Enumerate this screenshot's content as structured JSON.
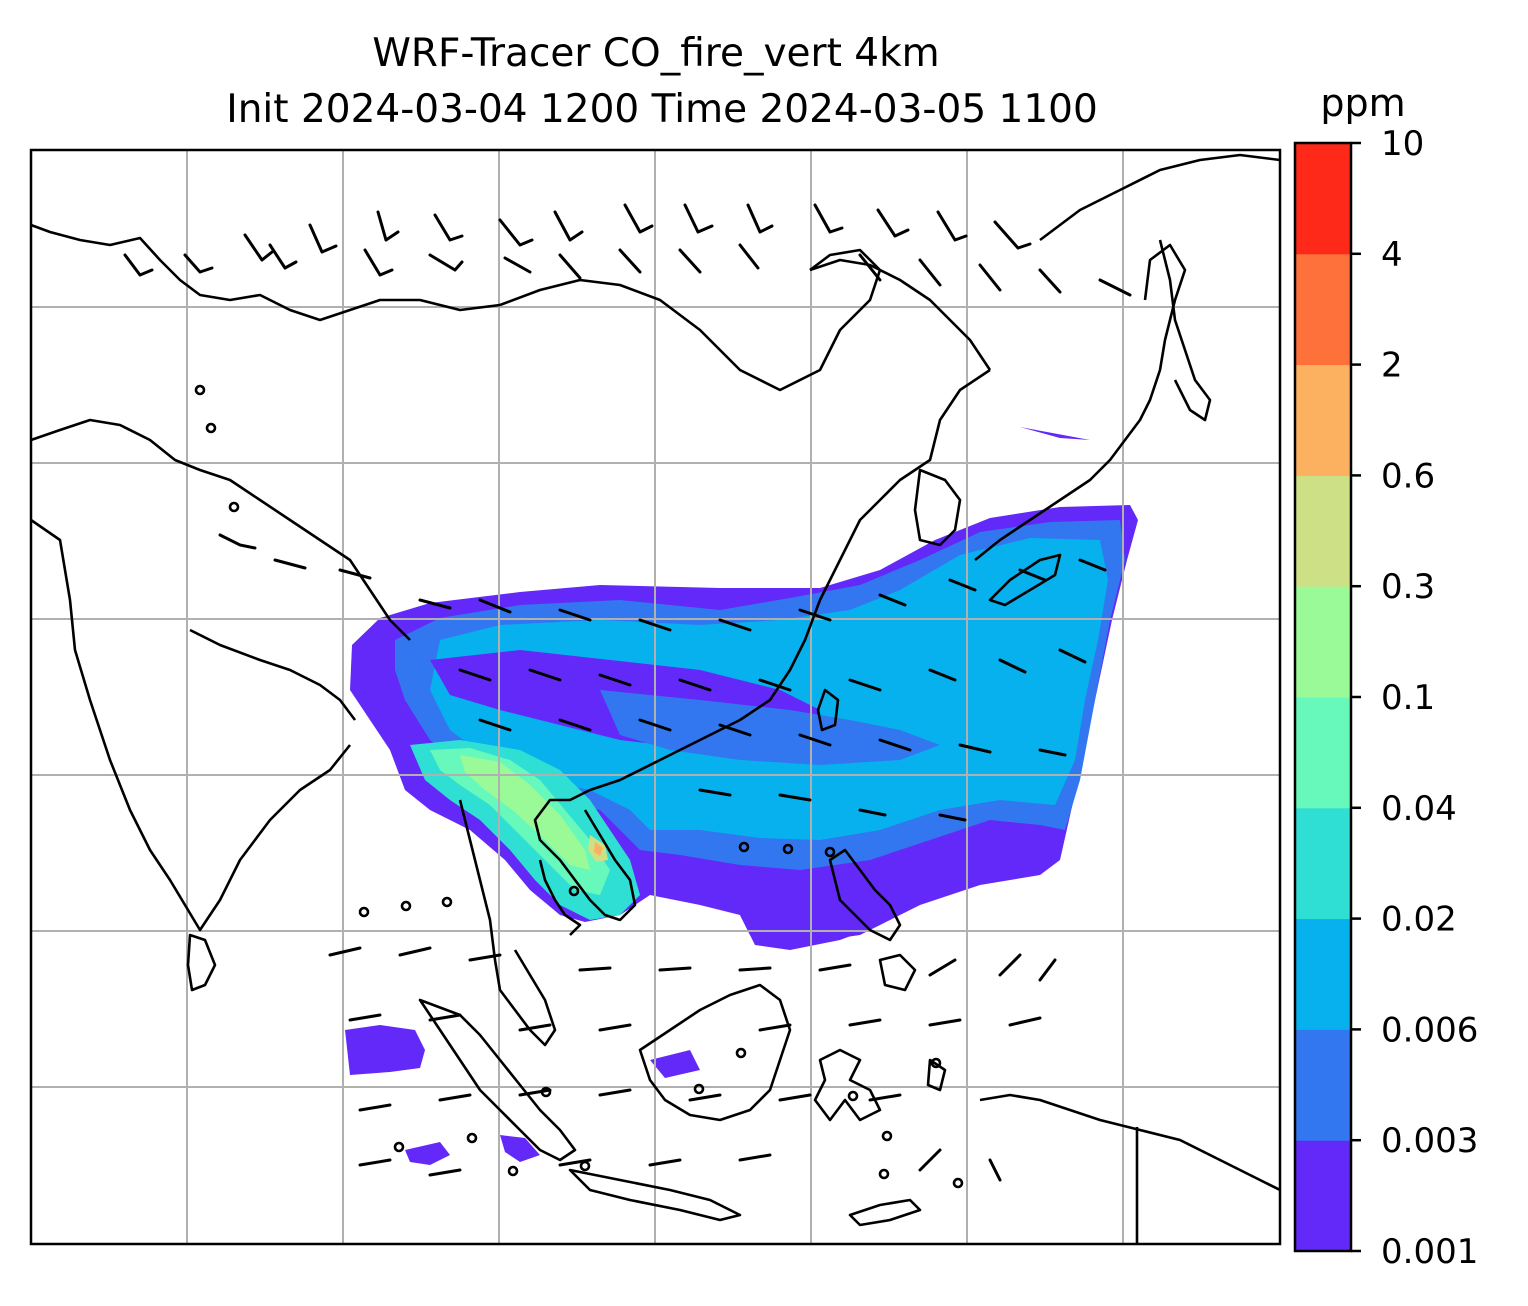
{
  "title": {
    "line1": "WRF-Tracer CO_fire_vert 4km",
    "line2": "Init 2024-03-04 1200 Time 2024-03-05 1100"
  },
  "colorbar": {
    "unit_label": "ppm",
    "levels": [
      {
        "label": "0.001",
        "color": "#6329f8"
      },
      {
        "label": "0.003",
        "color": "#3377f0"
      },
      {
        "label": "0.006",
        "color": "#06b1ed"
      },
      {
        "label": "0.02",
        "color": "#30dfd4"
      },
      {
        "label": "0.04",
        "color": "#67f9bb"
      },
      {
        "label": "0.1",
        "color": "#9bfa98"
      },
      {
        "label": "0.3",
        "color": "#cee085"
      },
      {
        "label": "0.6",
        "color": "#fbb160"
      },
      {
        "label": "2",
        "color": "#fe713a"
      },
      {
        "label": "4",
        "color": "#fe2919"
      },
      {
        "label": "10",
        "color": null
      }
    ]
  },
  "map": {
    "gridlines": true,
    "coastlines": true,
    "wind_barbs": true,
    "calm_markers": true
  }
}
